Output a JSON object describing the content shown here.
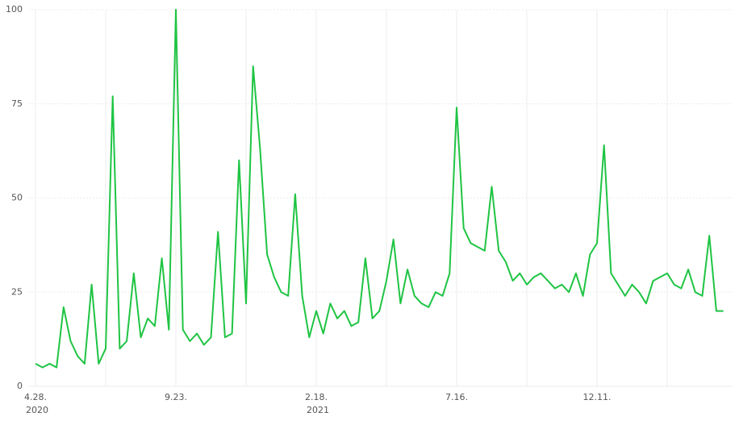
{
  "chart_data": {
    "type": "line",
    "categories": [
      "4.28.",
      null,
      null,
      null,
      null,
      null,
      null,
      null,
      null,
      null,
      null,
      null,
      null,
      null,
      null,
      null,
      null,
      null,
      null,
      null,
      "9.23.",
      null,
      null,
      null,
      null,
      null,
      null,
      null,
      null,
      null,
      null,
      null,
      null,
      null,
      null,
      null,
      null,
      null,
      null,
      null,
      "2.18.",
      null,
      null,
      null,
      null,
      null,
      null,
      null,
      null,
      null,
      null,
      null,
      null,
      null,
      null,
      null,
      null,
      null,
      null,
      null,
      "7.16.",
      null,
      null,
      null,
      null,
      null,
      null,
      null,
      null,
      null,
      null,
      null,
      null,
      null,
      null,
      null,
      null,
      null,
      null,
      null,
      "12.11.",
      null,
      null,
      null,
      null,
      null,
      null,
      null,
      null,
      null,
      null,
      null,
      null,
      null,
      null,
      null,
      null,
      null,
      null
    ],
    "category_years": [
      "2020",
      null,
      null,
      null,
      null,
      null,
      null,
      null,
      null,
      null,
      null,
      null,
      null,
      null,
      null,
      null,
      null,
      null,
      null,
      null,
      null,
      null,
      null,
      null,
      null,
      null,
      null,
      null,
      null,
      null,
      null,
      null,
      null,
      null,
      null,
      null,
      null,
      null,
      null,
      null,
      "2021",
      null,
      null,
      null,
      null,
      null,
      null,
      null,
      null,
      null,
      null,
      null,
      null,
      null,
      null,
      null,
      null,
      null,
      null,
      null,
      null,
      null,
      null,
      null,
      null,
      null,
      null,
      null,
      null,
      null,
      null,
      null,
      null,
      null,
      null,
      null,
      null,
      null,
      null,
      null,
      null,
      null,
      null,
      null,
      null,
      null,
      null,
      null,
      null,
      null,
      null,
      null,
      null,
      null,
      null,
      null,
      null,
      null,
      null
    ],
    "series": [
      {
        "color": "#1fc443",
        "values": [
          6,
          5,
          6,
          5,
          21,
          12,
          8,
          6,
          27,
          6,
          10,
          77,
          10,
          12,
          30,
          13,
          18,
          16,
          34,
          15,
          100,
          15,
          12,
          14,
          11,
          13,
          41,
          13,
          14,
          60,
          22,
          85,
          63,
          35,
          29,
          25,
          24,
          51,
          24,
          13,
          20,
          14,
          22,
          18,
          20,
          16,
          17,
          34,
          18,
          20,
          28,
          39,
          22,
          31,
          24,
          22,
          21,
          25,
          24,
          30,
          74,
          42,
          38,
          37,
          36,
          53,
          36,
          33,
          28,
          30,
          27,
          29,
          30,
          28,
          26,
          27,
          25,
          30,
          24,
          35,
          38,
          64,
          30,
          27,
          24,
          27,
          25,
          22,
          28,
          29,
          30,
          27,
          26,
          31,
          25,
          24,
          40,
          20,
          20
        ]
      }
    ],
    "ylim": [
      0,
      100
    ],
    "yticks": [
      0,
      25,
      50,
      75,
      100
    ],
    "grid": true
  }
}
